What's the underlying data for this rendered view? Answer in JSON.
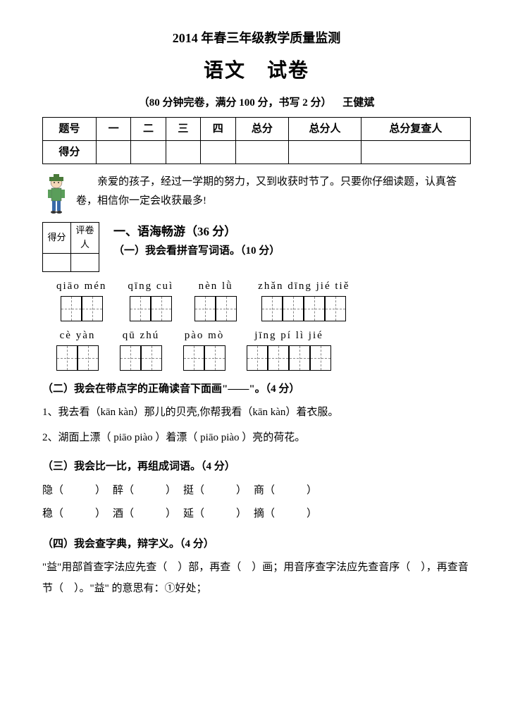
{
  "header": {
    "title1": "2014 年春三年级教学质量监测",
    "title2": "语文　试卷",
    "subtitle_left": "（80 分钟完卷，满分 100 分，书写 2 分）",
    "author": "王健斌"
  },
  "score_table": {
    "columns": [
      "题号",
      "一",
      "二",
      "三",
      "四",
      "总分",
      "总分人",
      "总分复查人"
    ],
    "row_label": "得分"
  },
  "intro": "亲爱的孩子，经过一学期的努力，又到收获时节了。只要你仔细读题，认真答卷，相信你一定会收获最多!",
  "mini_score": {
    "c1": "得分",
    "c2": "评卷人"
  },
  "sec1": {
    "title": "一、语海畅游（36 分）",
    "sub1": "（一）我会看拼音写词语。（10 分）",
    "pinyin_row1": [
      {
        "pinyin": "qiāo mén",
        "boxes": 2
      },
      {
        "pinyin": "qīng  cuì",
        "boxes": 2
      },
      {
        "pinyin": "nèn  lǜ",
        "boxes": 2
      },
      {
        "pinyin": "zhǎn dīng jié tiě",
        "boxes": 4
      }
    ],
    "pinyin_row2": [
      {
        "pinyin": "cè  yàn",
        "boxes": 2
      },
      {
        "pinyin": "qū zhú",
        "boxes": 2
      },
      {
        "pinyin": "pào mò",
        "boxes": 2
      },
      {
        "pinyin": "jīng  pí lì  jié",
        "boxes": 4
      }
    ],
    "sub2_title": "（二）我会在带点字的正确读音下面画\"——\"。（4 分）",
    "sub2_q1": "1、我去看（kān kàn）那儿的贝壳,你帮我看（kān kàn）着衣服。",
    "sub2_q2": "2、湖面上漂（ piāo  piào ）着漂（ piāo  piào ）亮的荷花。",
    "sub3_title": "（三）我会比一比，再组成词语。（4 分）",
    "sub3_pairs_row1": [
      "隐（　　　）",
      "醉（　　　）",
      "挺（　　　）",
      "商（　　　）"
    ],
    "sub3_pairs_row2": [
      "稳（　　　）",
      "酒（　　　）",
      "延（　　　）",
      "摘（　　　）"
    ],
    "sub4_title": "（四）我会查字典，辩字义。（4 分）",
    "sub4_text": "\"益\"用部首查字法应先查（　）部，再查（　）画；用音序查字法应先查音序（　），再查音节（　）。\"益\" 的意思有：①好处；"
  }
}
